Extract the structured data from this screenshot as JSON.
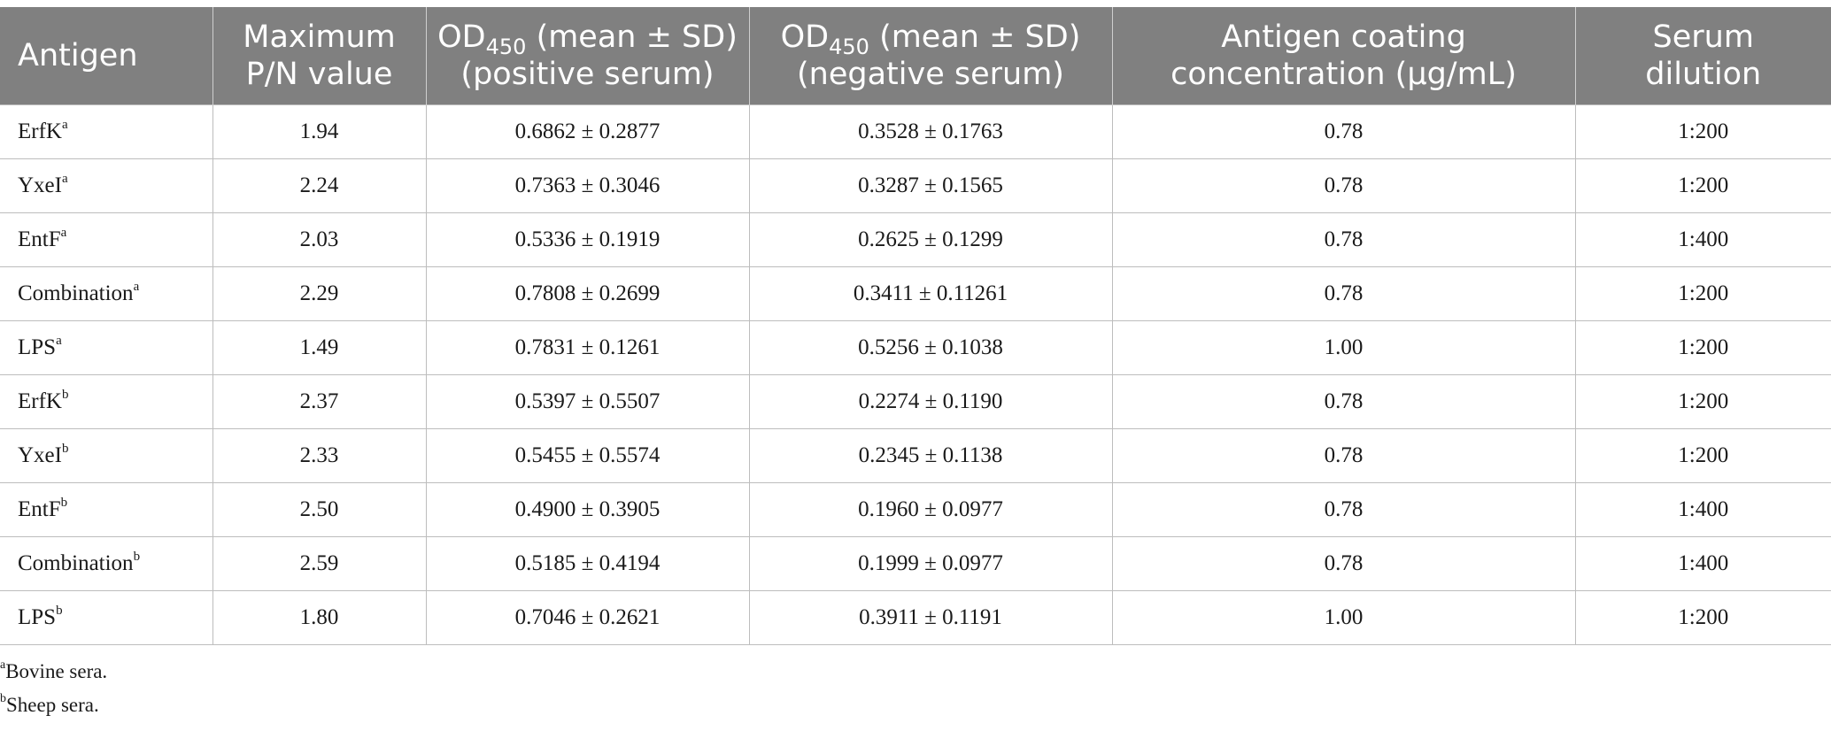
{
  "table": {
    "headers": [
      {
        "line1": "Antigen",
        "line2": ""
      },
      {
        "line1": "Maximum",
        "line2": "P/N value"
      },
      {
        "od_prefix": "OD",
        "od_sub": "450",
        "od_suffix": " (mean ± SD)",
        "line2": "(positive serum)"
      },
      {
        "od_prefix": "OD",
        "od_sub": "450",
        "od_suffix": " (mean ± SD)",
        "line2": "(negative serum)"
      },
      {
        "line1": "Antigen coating",
        "line2": "concentration (μg/mL)"
      },
      {
        "line1": "Serum",
        "line2": "dilution"
      }
    ],
    "rows": [
      {
        "antigen": "ErfK",
        "sup": "a",
        "pn": "1.94",
        "pos": "0.6862 ± 0.2877",
        "neg": "0.3528 ± 0.1763",
        "conc": "0.78",
        "dilution": "1:200"
      },
      {
        "antigen": "YxeI",
        "sup": "a",
        "pn": "2.24",
        "pos": "0.7363 ± 0.3046",
        "neg": "0.3287 ± 0.1565",
        "conc": "0.78",
        "dilution": "1:200"
      },
      {
        "antigen": "EntF",
        "sup": "a",
        "pn": "2.03",
        "pos": "0.5336 ± 0.1919",
        "neg": "0.2625 ± 0.1299",
        "conc": "0.78",
        "dilution": "1:400"
      },
      {
        "antigen": "Combination",
        "sup": "a",
        "pn": "2.29",
        "pos": "0.7808 ± 0.2699",
        "neg": "0.3411 ± 0.11261",
        "conc": "0.78",
        "dilution": "1:200"
      },
      {
        "antigen": "LPS",
        "sup": "a",
        "pn": "1.49",
        "pos": "0.7831 ± 0.1261",
        "neg": "0.5256 ± 0.1038",
        "conc": "1.00",
        "dilution": "1:200"
      },
      {
        "antigen": "ErfK",
        "sup": "b",
        "pn": "2.37",
        "pos": "0.5397 ± 0.5507",
        "neg": "0.2274 ± 0.1190",
        "conc": "0.78",
        "dilution": "1:200"
      },
      {
        "antigen": "YxeI",
        "sup": "b",
        "pn": "2.33",
        "pos": "0.5455 ± 0.5574",
        "neg": "0.2345 ± 0.1138",
        "conc": "0.78",
        "dilution": "1:200"
      },
      {
        "antigen": "EntF",
        "sup": "b",
        "pn": "2.50",
        "pos": "0.4900 ± 0.3905",
        "neg": "0.1960 ± 0.0977",
        "conc": "0.78",
        "dilution": "1:400"
      },
      {
        "antigen": "Combination",
        "sup": "b",
        "pn": "2.59",
        "pos": "0.5185 ± 0.4194",
        "neg": "0.1999 ± 0.0977",
        "conc": "0.78",
        "dilution": "1:400"
      },
      {
        "antigen": "LPS",
        "sup": "b",
        "pn": "1.80",
        "pos": "0.7046 ± 0.2621",
        "neg": "0.3911 ± 0.1191",
        "conc": "1.00",
        "dilution": "1:200"
      }
    ]
  },
  "footnotes": [
    {
      "mark": "a",
      "text": "Bovine sera."
    },
    {
      "mark": "b",
      "text": "Sheep sera."
    }
  ],
  "colors": {
    "header_bg": "#808080",
    "header_text": "#ffffff",
    "grid": "#bdbdbd"
  }
}
